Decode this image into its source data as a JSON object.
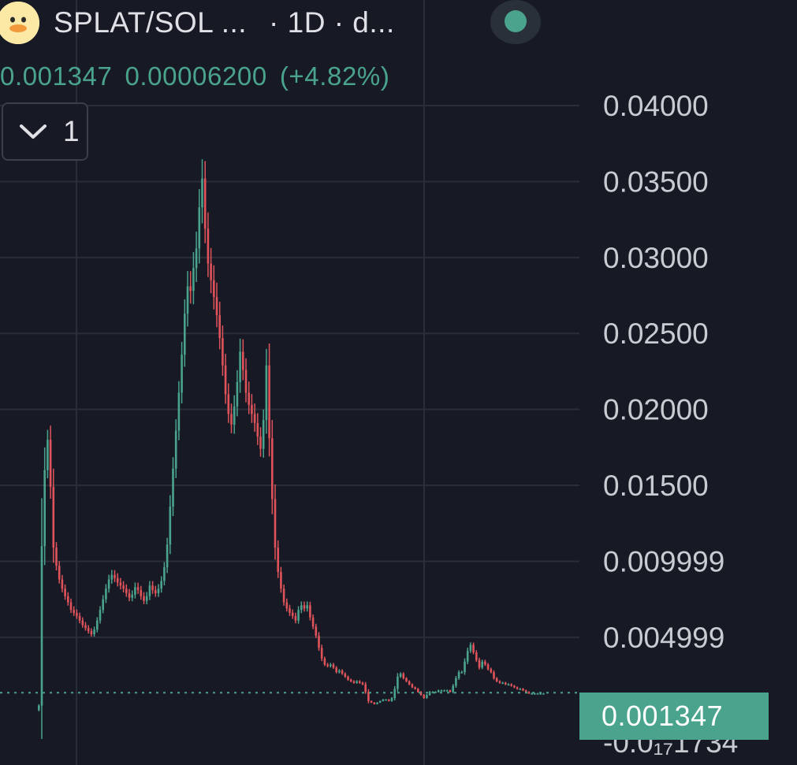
{
  "header": {
    "pair": "SPLAT/SOL ...",
    "interval": "· 1D · d...",
    "status": "live",
    "change_value": "0.00006200",
    "change_percent": "(+4.82%)",
    "last_price": "0.001347"
  },
  "indicator_toggle": {
    "count": "1"
  },
  "price_axis": {
    "ticks": [
      "0.04000",
      "0.03500",
      "0.03000",
      "0.02500",
      "0.02000",
      "0.01500",
      "0.009999",
      "0.004999"
    ],
    "partial_tick": "-0.0₁₇1734",
    "current_price_label": "0.001347"
  },
  "colors": {
    "up": "#4aa38c",
    "down": "#e0535b",
    "background": "#171a25",
    "grid": "#2a2e39",
    "axis_text": "#c9cbd2"
  },
  "chart_data": {
    "type": "candlestick",
    "title": "SPLAT/SOL ... · 1D · d...",
    "ylim": [
      -0.0017,
      0.0427
    ],
    "yticks": [
      0.04,
      0.035,
      0.03,
      0.025,
      0.02,
      0.015,
      0.009999,
      0.004999
    ],
    "last_price": 0.001347,
    "grid": true,
    "closes": [
      0.0005,
      0.011,
      0.016,
      0.018,
      0.0149,
      0.0109,
      0.0097,
      0.0088,
      0.0082,
      0.0077,
      0.0073,
      0.0068,
      0.0066,
      0.0064,
      0.0061,
      0.0058,
      0.0056,
      0.0054,
      0.0052,
      0.0055,
      0.0061,
      0.0068,
      0.0075,
      0.0082,
      0.0088,
      0.0091,
      0.0089,
      0.0086,
      0.0084,
      0.0082,
      0.0079,
      0.0076,
      0.0078,
      0.0083,
      0.0081,
      0.0077,
      0.0074,
      0.0077,
      0.0084,
      0.0081,
      0.0079,
      0.0082,
      0.0087,
      0.0096,
      0.0111,
      0.0136,
      0.0161,
      0.0186,
      0.0211,
      0.0236,
      0.0263,
      0.0281,
      0.0278,
      0.0293,
      0.0306,
      0.0333,
      0.0352,
      0.0319,
      0.0296,
      0.0285,
      0.0274,
      0.0262,
      0.0247,
      0.0229,
      0.021,
      0.0197,
      0.019,
      0.0202,
      0.0218,
      0.0238,
      0.0226,
      0.0211,
      0.0203,
      0.0197,
      0.0191,
      0.0182,
      0.0174,
      0.0193,
      0.0229,
      0.0181,
      0.0141,
      0.0109,
      0.0093,
      0.0082,
      0.0073,
      0.0069,
      0.0066,
      0.0064,
      0.0061,
      0.0068,
      0.0071,
      0.0069,
      0.0071,
      0.0063,
      0.0057,
      0.0051,
      0.0043,
      0.0036,
      0.0032,
      0.0031,
      0.0032,
      0.003,
      0.0027,
      0.0028,
      0.0026,
      0.0024,
      0.0022,
      0.0021,
      0.002,
      0.0021,
      0.002,
      0.0019,
      0.0014,
      0.0008,
      0.0007,
      0.0006,
      0.0007,
      0.0008,
      0.0009,
      0.0009,
      0.0008,
      0.001,
      0.0016,
      0.0024,
      0.0026,
      0.0023,
      0.0021,
      0.0019,
      0.0017,
      0.0016,
      0.0014,
      0.0012,
      0.001,
      0.0012,
      0.0014,
      0.0014,
      0.0014,
      0.0015,
      0.0015,
      0.0015,
      0.0015,
      0.0014,
      0.0018,
      0.0023,
      0.0027,
      0.0027,
      0.0034,
      0.0041,
      0.0045,
      0.004,
      0.0035,
      0.003,
      0.0034,
      0.0032,
      0.0029,
      0.0027,
      0.0023,
      0.0021,
      0.002,
      0.002,
      0.0019,
      0.0019,
      0.0018,
      0.0017,
      0.0016,
      0.0016,
      0.0015,
      0.0014,
      0.0013,
      0.0013,
      0.0013,
      0.0013,
      0.0013,
      0.0013
    ]
  }
}
